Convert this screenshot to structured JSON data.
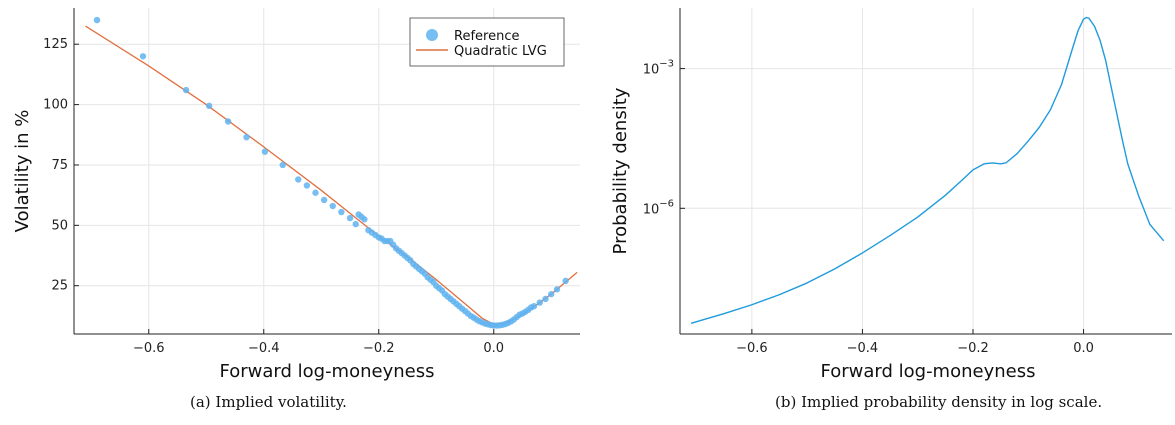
{
  "captions": [
    "(a)  Implied volatility.",
    "(b)  Implied probability density in log scale."
  ],
  "chart_data": [
    {
      "type": "scatter",
      "xlabel": "Forward log-moneyness",
      "ylabel": "Volatility in %",
      "xlim": [
        -0.73,
        0.15
      ],
      "ylim": [
        5,
        140
      ],
      "xticks": [
        -0.6,
        -0.4,
        -0.2,
        0.0
      ],
      "xtick_labels": [
        "−0.6",
        "−0.4",
        "−0.2",
        "0.0"
      ],
      "yticks": [
        25,
        50,
        75,
        100,
        125
      ],
      "ytick_labels": [
        "25",
        "50",
        "75",
        "100",
        "125"
      ],
      "grid": true,
      "legend": "top-right",
      "series": [
        {
          "name": "Reference",
          "kind": "scatter",
          "color": "#5fb3f0",
          "x": [
            -0.69,
            -0.61,
            -0.535,
            -0.495,
            -0.462,
            -0.43,
            -0.398,
            -0.367,
            -0.34,
            -0.325,
            -0.31,
            -0.295,
            -0.28,
            -0.265,
            -0.25,
            -0.24,
            -0.235,
            -0.23,
            -0.225,
            -0.218,
            -0.212,
            -0.206,
            -0.2,
            -0.195,
            -0.19,
            -0.185,
            -0.18,
            -0.175,
            -0.17,
            -0.165,
            -0.16,
            -0.155,
            -0.15,
            -0.145,
            -0.14,
            -0.135,
            -0.13,
            -0.125,
            -0.12,
            -0.115,
            -0.11,
            -0.105,
            -0.1,
            -0.095,
            -0.09,
            -0.085,
            -0.08,
            -0.075,
            -0.07,
            -0.065,
            -0.06,
            -0.055,
            -0.05,
            -0.045,
            -0.04,
            -0.035,
            -0.03,
            -0.025,
            -0.02,
            -0.015,
            -0.01,
            -0.005,
            0.0,
            0.005,
            0.01,
            0.015,
            0.02,
            0.025,
            0.03,
            0.035,
            0.04,
            0.045,
            0.05,
            0.055,
            0.06,
            0.065,
            0.07,
            0.08,
            0.09,
            0.1,
            0.11,
            0.125
          ],
          "y": [
            135,
            120,
            106,
            99.5,
            93,
            86.5,
            80.5,
            75,
            69,
            66.5,
            63.5,
            60.5,
            58,
            55.5,
            53,
            50.5,
            54.5,
            53.5,
            52.5,
            48,
            47,
            46,
            45,
            44.5,
            43.5,
            43.5,
            43.5,
            42,
            40.5,
            39.5,
            38.5,
            37.5,
            36.5,
            35.5,
            34,
            33,
            32,
            31,
            30,
            28.5,
            27.5,
            26.5,
            25,
            24,
            23,
            21.5,
            20.5,
            19.5,
            18.5,
            17.5,
            16.5,
            15.5,
            14.5,
            13.5,
            12.5,
            11.8,
            11,
            10.3,
            9.8,
            9.3,
            9,
            8.7,
            8.5,
            8.5,
            8.6,
            8.8,
            9.1,
            9.6,
            10.2,
            11,
            12,
            13,
            13.5,
            14.2,
            15,
            16,
            16.5,
            18,
            19.5,
            21.5,
            23.5,
            27
          ]
        },
        {
          "name": "Quadratic LVG",
          "kind": "line",
          "color": "#e26f3f",
          "x": [
            -0.71,
            -0.6,
            -0.5,
            -0.4,
            -0.3,
            -0.25,
            -0.2,
            -0.15,
            -0.1,
            -0.05,
            -0.02,
            0.0,
            0.02,
            0.05,
            0.08,
            0.1,
            0.145
          ],
          "y": [
            132.5,
            116,
            100,
            82.5,
            64.5,
            55,
            45.5,
            37,
            27.5,
            17.5,
            11.5,
            9,
            9.6,
            13,
            18,
            21.5,
            30.5
          ]
        }
      ]
    },
    {
      "type": "line",
      "xlabel": "Forward log-moneyness",
      "ylabel": "Probability density",
      "yscale": "log",
      "xlim": [
        -0.73,
        0.16
      ],
      "ylim": [
        2e-09,
        0.02
      ],
      "xticks": [
        -0.6,
        -0.4,
        -0.2,
        0.0
      ],
      "xtick_labels": [
        "−0.6",
        "−0.4",
        "−0.2",
        "0.0"
      ],
      "yticks": [
        1e-06,
        0.001
      ],
      "ytick_bases": [
        "10",
        "10"
      ],
      "ytick_exps": [
        "−6",
        "−3"
      ],
      "grid": true,
      "series": [
        {
          "name": "",
          "color": "#1f9bdc",
          "x": [
            -0.71,
            -0.65,
            -0.6,
            -0.55,
            -0.5,
            -0.45,
            -0.4,
            -0.35,
            -0.3,
            -0.25,
            -0.22,
            -0.2,
            -0.18,
            -0.165,
            -0.15,
            -0.14,
            -0.12,
            -0.1,
            -0.08,
            -0.06,
            -0.04,
            -0.03,
            -0.02,
            -0.01,
            0.0,
            0.005,
            0.01,
            0.02,
            0.03,
            0.04,
            0.05,
            0.06,
            0.07,
            0.08,
            0.1,
            0.12,
            0.145
          ],
          "y": [
            3.4e-09,
            5.5e-09,
            8.5e-09,
            1.4e-08,
            2.5e-08,
            5e-08,
            1.1e-07,
            2.6e-07,
            6.5e-07,
            1.9e-06,
            4e-06,
            6.7e-06,
            9e-06,
            9.4e-06,
            9e-06,
            9.5e-06,
            1.5e-05,
            2.8e-05,
            5.5e-05,
            0.00013,
            0.00045,
            0.0011,
            0.0027,
            0.0065,
            0.0115,
            0.0125,
            0.012,
            0.008,
            0.004,
            0.0015,
            0.0004,
            0.00011,
            3e-05,
            9e-06,
            1.8e-06,
            4.5e-07,
            2e-07
          ]
        }
      ]
    }
  ]
}
